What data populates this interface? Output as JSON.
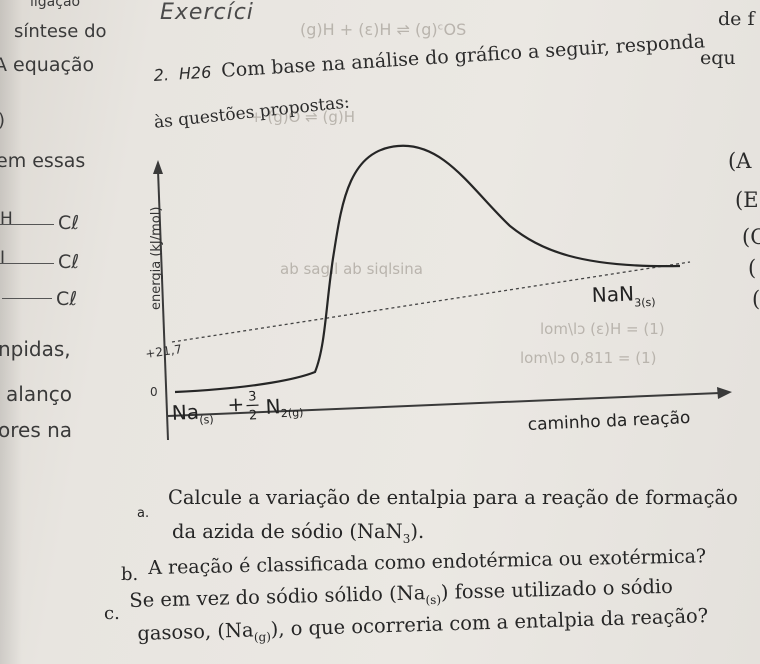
{
  "left_column": {
    "ligacao": "ligação",
    "sintese_do": "síntese do",
    "equacao": "A equação",
    "paren": ")",
    "em_essas": "em essas",
    "bond1": "Cℓ",
    "bond2": "Cℓ",
    "bond3": "Cℓ",
    "npidas": "npidas,",
    "alanco": "alanço",
    "ores_na": "ores na"
  },
  "header": {
    "exercicio": "Exercíci",
    "de_f": "de f",
    "equ": "equ"
  },
  "question": {
    "number": "2.",
    "code": "H26",
    "intro_line1": "Com base na análise do gráfico a seguir, responda",
    "intro_line2": "às questões propostas:"
  },
  "right_column": {
    "a": "(A",
    "b": "(E",
    "c": "(C",
    "d": "(",
    "e": "("
  },
  "chart_data": {
    "type": "line",
    "ylabel": "energia (kJ/mol)",
    "xlabel": "caminho da reação",
    "y_ticks": [
      "0",
      "+21,7"
    ],
    "reactants_label": {
      "species": "Na",
      "sub1": "(s)",
      "plus": "+",
      "coef_num": "3",
      "coef_den": "2",
      "species2": "N",
      "sub2": "2(g)"
    },
    "product_label": {
      "species": "NaN",
      "sub": "3(s)"
    },
    "levels": {
      "reactants": 0,
      "products": 21.7
    }
  },
  "items": {
    "a_marker": "a.",
    "a_line1": "Calcule a variação de entalpia para a reação de formação",
    "a_line2_pre": "da azida de sódio (NaN",
    "a_line2_sub": "3",
    "a_line2_post": ").",
    "b_marker": "b.",
    "b_text": "A reação é classificada como endotérmica ou exotérmica?",
    "c_marker": "c.",
    "c_line1_pre": "Se em vez do sódio sólido (Na",
    "c_line1_sub": "(s)",
    "c_line1_post": ") fosse utilizado o sódio",
    "c_line2_pre": "gasoso, (Na",
    "c_line2_sub": "(g)",
    "c_line2_post": "), o que ocorreria com a entalpia da reação?"
  }
}
